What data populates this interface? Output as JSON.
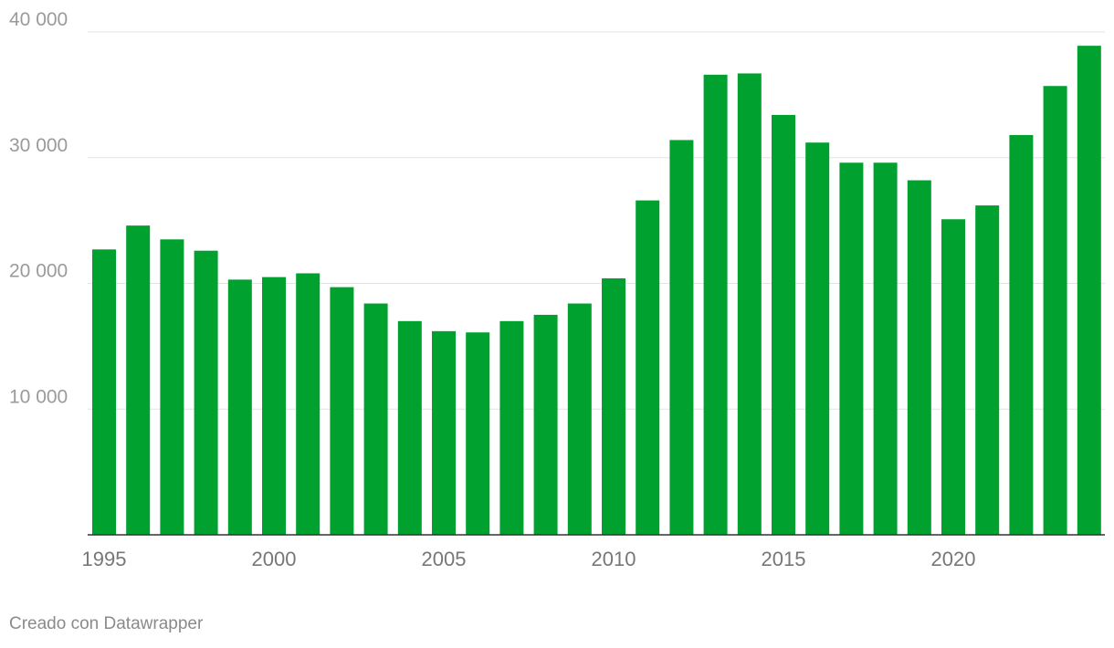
{
  "chart_data": {
    "type": "bar",
    "title": "",
    "xlabel": "",
    "ylabel": "",
    "categories": [
      "1995",
      "1996",
      "1997",
      "1998",
      "1999",
      "2000",
      "2001",
      "2002",
      "2003",
      "2004",
      "2005",
      "2006",
      "2007",
      "2008",
      "2009",
      "2010",
      "2011",
      "2012",
      "2013",
      "2014",
      "2015",
      "2016",
      "2017",
      "2018",
      "2019",
      "2020",
      "2021",
      "2022",
      "2023",
      "2024"
    ],
    "values": [
      22700,
      24600,
      23500,
      22600,
      20300,
      20500,
      20800,
      19700,
      18400,
      17000,
      16200,
      16100,
      17000,
      17500,
      18400,
      20400,
      26600,
      31400,
      36600,
      36700,
      33400,
      31200,
      29600,
      29600,
      28200,
      25100,
      26200,
      31800,
      35700,
      38900
    ],
    "ylim": [
      0,
      40000
    ],
    "y_ticks": [
      {
        "value": 10000,
        "label": "10 000"
      },
      {
        "value": 20000,
        "label": "20 000"
      },
      {
        "value": 30000,
        "label": "30 000"
      },
      {
        "value": 40000,
        "label": "40 000"
      }
    ],
    "x_tick_labels": [
      "1995",
      "2000",
      "2005",
      "2010",
      "2015",
      "2020"
    ],
    "grid": true,
    "legend": "none",
    "bar_color": "#00a12f"
  },
  "footer": {
    "credit": "Creado con Datawrapper"
  }
}
